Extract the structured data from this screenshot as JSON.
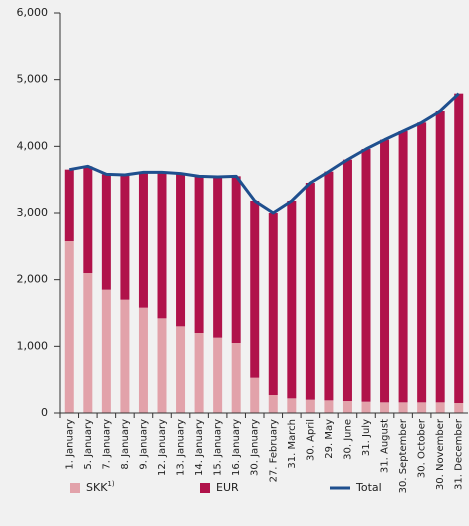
{
  "chart_data": {
    "type": "bar",
    "stacked": true,
    "categories": [
      "1. January",
      "5. January",
      "7. January",
      "8. January",
      "9. January",
      "12. January",
      "13. January",
      "14. January",
      "15. January",
      "16. January",
      "30. January",
      "27. February",
      "31. March",
      "30. April",
      "29. May",
      "30. June",
      "31. July",
      "31. August",
      "30. September",
      "30. October",
      "30. November",
      "31. December"
    ],
    "series": [
      {
        "name": "SKK",
        "note": "1)",
        "type": "bar",
        "color": "#e2a2aa",
        "values": [
          2580,
          2100,
          1850,
          1700,
          1580,
          1420,
          1300,
          1200,
          1130,
          1050,
          530,
          270,
          220,
          200,
          190,
          180,
          170,
          160,
          160,
          160,
          160,
          150
        ]
      },
      {
        "name": "EUR",
        "type": "bar",
        "color": "#b0124a",
        "values": [
          1070,
          1600,
          1730,
          1870,
          2030,
          2190,
          2290,
          2350,
          2410,
          2500,
          2650,
          2730,
          2960,
          3250,
          3430,
          3620,
          3790,
          3940,
          4070,
          4200,
          4370,
          4640
        ]
      },
      {
        "name": "Total",
        "type": "line",
        "color": "#1f4f8e",
        "values": [
          3650,
          3700,
          3580,
          3570,
          3610,
          3610,
          3590,
          3550,
          3540,
          3550,
          3180,
          3000,
          3180,
          3450,
          3620,
          3800,
          3960,
          4100,
          4230,
          4360,
          4530,
          4790
        ]
      }
    ],
    "ylim": [
      0,
      6000
    ],
    "yticks": [
      0,
      {
        "value": 1000,
        "label": "1,000"
      },
      {
        "value": 2000,
        "label": "2,000"
      },
      {
        "value": 3000,
        "label": "3,000"
      },
      {
        "value": 4000,
        "label": "4,000"
      },
      {
        "value": 5000,
        "label": "5,000"
      },
      {
        "value": 6000,
        "label": "6,000"
      }
    ],
    "grid": false,
    "legend": "bottom"
  }
}
